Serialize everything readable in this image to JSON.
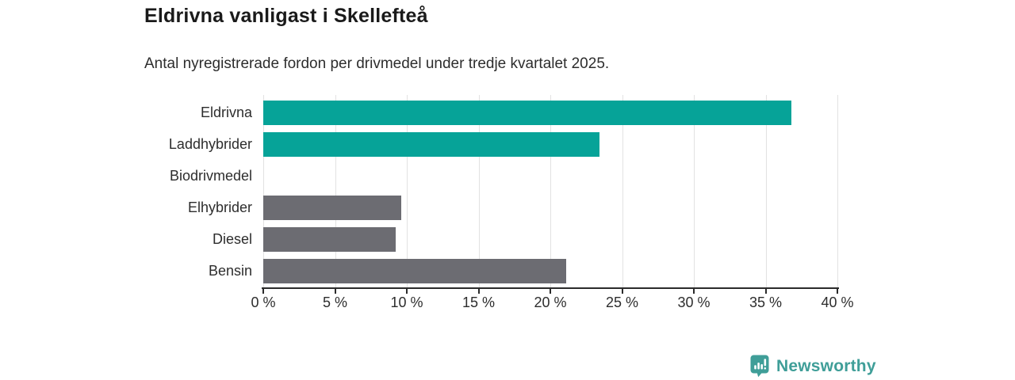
{
  "header": {
    "title": "Eldrivna vanligast i Skellefteå",
    "subtitle": "Antal nyregistrerade fordon per drivmedel under tredje kvartalet 2025."
  },
  "chart_data": {
    "type": "bar",
    "orientation": "horizontal",
    "title": "Eldrivna vanligast i Skellefteå",
    "subtitle": "Antal nyregistrerade fordon per drivmedel under tredje kvartalet 2025.",
    "categories": [
      "Eldrivna",
      "Laddhybrider",
      "Biodrivmedel",
      "Elhybrider",
      "Diesel",
      "Bensin"
    ],
    "values": [
      36.8,
      23.4,
      0,
      9.6,
      9.2,
      21.1
    ],
    "unit": "%",
    "xlabel": "",
    "ylabel": "",
    "xlim": [
      0,
      40
    ],
    "xticks": [
      0,
      5,
      10,
      15,
      20,
      25,
      30,
      35,
      40
    ],
    "xtick_labels": [
      "0 %",
      "5 %",
      "10 %",
      "15 %",
      "20 %",
      "25 %",
      "30 %",
      "35 %",
      "40 %"
    ],
    "grid": "vertical-only",
    "legend": "none",
    "bar_colors": [
      "#06a398",
      "#06a398",
      "#6c6c72",
      "#6c6c72",
      "#6c6c72",
      "#6c6c72"
    ]
  },
  "colors": {
    "bar_teal": "#06a398",
    "bar_gray": "#6c6c72",
    "gridline": "#e2e2e2",
    "axis": "#2b2b2b",
    "logo_teal": "#3f9e98",
    "background": "#ffffff"
  },
  "footer": {
    "brand": "Newsworthy"
  }
}
